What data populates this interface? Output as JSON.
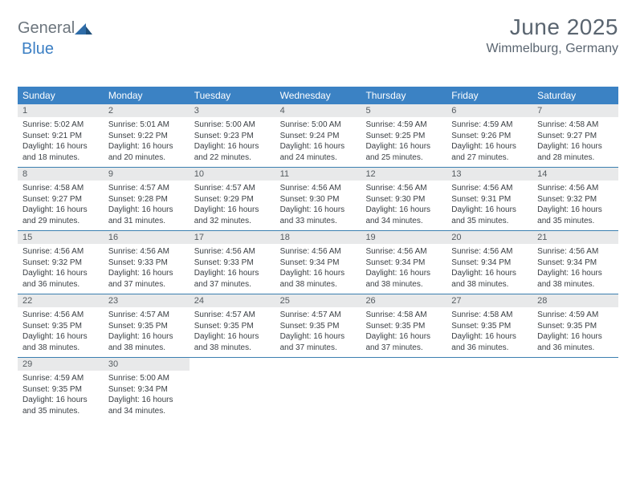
{
  "logo": {
    "text1": "General",
    "text2": "Blue"
  },
  "header": {
    "title": "June 2025",
    "location": "Wimmelburg, Germany"
  },
  "colors": {
    "header_bg": "#3b82c4",
    "header_text": "#ffffff",
    "daynum_bg": "#e8e9ea",
    "daynum_text": "#555b60",
    "body_text": "#3a3f44",
    "rule": "#3b7fb0",
    "logo_gray": "#6c757d",
    "logo_blue": "#3b7fc4",
    "title_color": "#5a6570",
    "background": "#ffffff"
  },
  "dayNames": [
    "Sunday",
    "Monday",
    "Tuesday",
    "Wednesday",
    "Thursday",
    "Friday",
    "Saturday"
  ],
  "labels": {
    "sunrise": "Sunrise:",
    "sunset": "Sunset:",
    "daylight": "Daylight:"
  },
  "weeks": [
    [
      {
        "n": "1",
        "sr": "5:02 AM",
        "ss": "9:21 PM",
        "dl": "16 hours and 18 minutes."
      },
      {
        "n": "2",
        "sr": "5:01 AM",
        "ss": "9:22 PM",
        "dl": "16 hours and 20 minutes."
      },
      {
        "n": "3",
        "sr": "5:00 AM",
        "ss": "9:23 PM",
        "dl": "16 hours and 22 minutes."
      },
      {
        "n": "4",
        "sr": "5:00 AM",
        "ss": "9:24 PM",
        "dl": "16 hours and 24 minutes."
      },
      {
        "n": "5",
        "sr": "4:59 AM",
        "ss": "9:25 PM",
        "dl": "16 hours and 25 minutes."
      },
      {
        "n": "6",
        "sr": "4:59 AM",
        "ss": "9:26 PM",
        "dl": "16 hours and 27 minutes."
      },
      {
        "n": "7",
        "sr": "4:58 AM",
        "ss": "9:27 PM",
        "dl": "16 hours and 28 minutes."
      }
    ],
    [
      {
        "n": "8",
        "sr": "4:58 AM",
        "ss": "9:27 PM",
        "dl": "16 hours and 29 minutes."
      },
      {
        "n": "9",
        "sr": "4:57 AM",
        "ss": "9:28 PM",
        "dl": "16 hours and 31 minutes."
      },
      {
        "n": "10",
        "sr": "4:57 AM",
        "ss": "9:29 PM",
        "dl": "16 hours and 32 minutes."
      },
      {
        "n": "11",
        "sr": "4:56 AM",
        "ss": "9:30 PM",
        "dl": "16 hours and 33 minutes."
      },
      {
        "n": "12",
        "sr": "4:56 AM",
        "ss": "9:30 PM",
        "dl": "16 hours and 34 minutes."
      },
      {
        "n": "13",
        "sr": "4:56 AM",
        "ss": "9:31 PM",
        "dl": "16 hours and 35 minutes."
      },
      {
        "n": "14",
        "sr": "4:56 AM",
        "ss": "9:32 PM",
        "dl": "16 hours and 35 minutes."
      }
    ],
    [
      {
        "n": "15",
        "sr": "4:56 AM",
        "ss": "9:32 PM",
        "dl": "16 hours and 36 minutes."
      },
      {
        "n": "16",
        "sr": "4:56 AM",
        "ss": "9:33 PM",
        "dl": "16 hours and 37 minutes."
      },
      {
        "n": "17",
        "sr": "4:56 AM",
        "ss": "9:33 PM",
        "dl": "16 hours and 37 minutes."
      },
      {
        "n": "18",
        "sr": "4:56 AM",
        "ss": "9:34 PM",
        "dl": "16 hours and 38 minutes."
      },
      {
        "n": "19",
        "sr": "4:56 AM",
        "ss": "9:34 PM",
        "dl": "16 hours and 38 minutes."
      },
      {
        "n": "20",
        "sr": "4:56 AM",
        "ss": "9:34 PM",
        "dl": "16 hours and 38 minutes."
      },
      {
        "n": "21",
        "sr": "4:56 AM",
        "ss": "9:34 PM",
        "dl": "16 hours and 38 minutes."
      }
    ],
    [
      {
        "n": "22",
        "sr": "4:56 AM",
        "ss": "9:35 PM",
        "dl": "16 hours and 38 minutes."
      },
      {
        "n": "23",
        "sr": "4:57 AM",
        "ss": "9:35 PM",
        "dl": "16 hours and 38 minutes."
      },
      {
        "n": "24",
        "sr": "4:57 AM",
        "ss": "9:35 PM",
        "dl": "16 hours and 38 minutes."
      },
      {
        "n": "25",
        "sr": "4:57 AM",
        "ss": "9:35 PM",
        "dl": "16 hours and 37 minutes."
      },
      {
        "n": "26",
        "sr": "4:58 AM",
        "ss": "9:35 PM",
        "dl": "16 hours and 37 minutes."
      },
      {
        "n": "27",
        "sr": "4:58 AM",
        "ss": "9:35 PM",
        "dl": "16 hours and 36 minutes."
      },
      {
        "n": "28",
        "sr": "4:59 AM",
        "ss": "9:35 PM",
        "dl": "16 hours and 36 minutes."
      }
    ],
    [
      {
        "n": "29",
        "sr": "4:59 AM",
        "ss": "9:35 PM",
        "dl": "16 hours and 35 minutes."
      },
      {
        "n": "30",
        "sr": "5:00 AM",
        "ss": "9:34 PM",
        "dl": "16 hours and 34 minutes."
      },
      null,
      null,
      null,
      null,
      null
    ]
  ]
}
